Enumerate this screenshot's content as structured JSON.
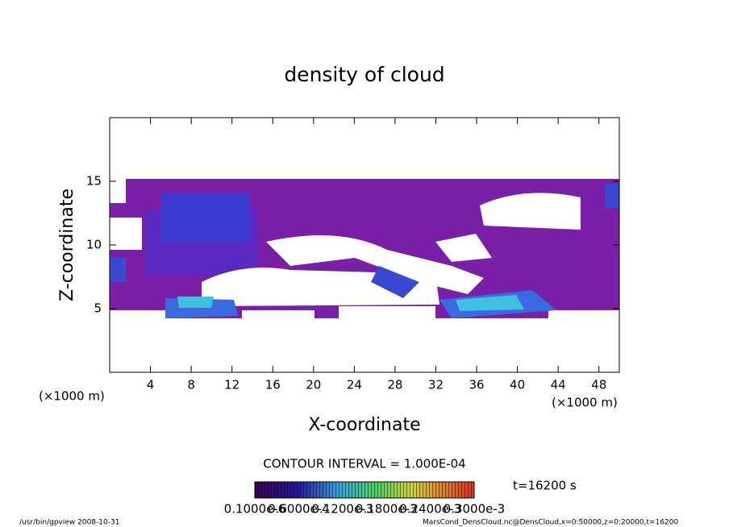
{
  "chart_data": {
    "type": "contour",
    "title": "density of cloud",
    "x_label": "X-coordinate",
    "y_label": "Z-coordinate",
    "x_unit": "(×1000 m)",
    "y_unit": "(×1000 m)",
    "xlim": [
      0,
      50
    ],
    "ylim": [
      0,
      20
    ],
    "xticks": [
      4,
      8,
      12,
      16,
      20,
      24,
      28,
      32,
      36,
      40,
      44,
      48
    ],
    "yticks": [
      5,
      10,
      15
    ],
    "contour_interval": "CONTOUR INTERVAL = 1.000E-04",
    "time": "t=16200 s",
    "colorbar_labels": [
      "0.1000e-6",
      "0.6000e-4",
      "0.1200e-3",
      "0.1800e-3",
      "0.2400e-3",
      "0.3000e-3"
    ]
  },
  "footer": {
    "left": "/usr/bin/gpview   2008-10-31",
    "right": "MarsCond_DensCloud.nc@DensCloud,x=0:50000,z=0:20000,t=16200"
  }
}
